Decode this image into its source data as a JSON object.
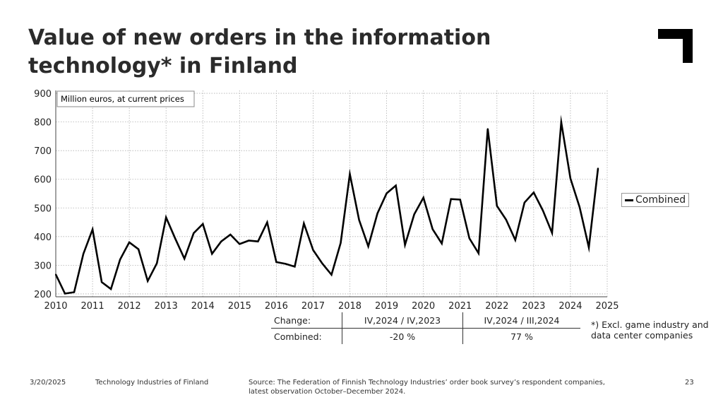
{
  "title_lines": [
    "Value of new orders in the information",
    "technology* in Finland"
  ],
  "unit_label": "Million euros, at current prices",
  "legend": [
    "Combined"
  ],
  "table": {
    "header": [
      "Change:",
      "IV,2024 / IV,2023",
      "IV,2024 / III,2024"
    ],
    "row": [
      "Combined:",
      "-20 %",
      "77 %"
    ]
  },
  "footnote": "*) Excl. game industry and data center companies",
  "footer": {
    "date": "3/20/2025",
    "org": "Technology Industries of Finland",
    "source_line1": "Source: The Federation of Finnish Technology Industries’ order book survey’s respondent companies,",
    "source_line2": "latest observation October–December 2024.",
    "page": "23"
  },
  "colors": {
    "line": "#000000",
    "grid": "#b0b0b0",
    "logo": "#000000"
  },
  "chart_data": {
    "type": "line",
    "title": "Value of new orders in the information technology* in Finland",
    "ylabel": "Million euros, at current prices",
    "xlabel": "",
    "ylim": [
      190,
      910
    ],
    "xlim": [
      2010,
      2025
    ],
    "yticks": [
      200,
      300,
      400,
      500,
      600,
      700,
      800,
      900
    ],
    "xticks": [
      "2010",
      "2011",
      "2012",
      "2013",
      "2014",
      "2015",
      "2016",
      "2017",
      "2018",
      "2019",
      "2020",
      "2021",
      "2022",
      "2023",
      "2024",
      "2025"
    ],
    "grid": true,
    "legend_position": "right",
    "series": [
      {
        "name": "Combined",
        "x_start": "2009 Q4",
        "frequency": "quarterly",
        "values": [
          268,
          201,
          206,
          340,
          425,
          241,
          217,
          320,
          380,
          356,
          245,
          307,
          467,
          393,
          323,
          412,
          444,
          340,
          383,
          407,
          374,
          386,
          383,
          450,
          311,
          305,
          295,
          446,
          353,
          306,
          267,
          378,
          618,
          458,
          366,
          481,
          551,
          578,
          371,
          478,
          536,
          426,
          376,
          531,
          529,
          394,
          342,
          776,
          507,
          459,
          388,
          519,
          554,
          491,
          413,
          799,
          603,
          503,
          362,
          638
        ]
      }
    ]
  }
}
